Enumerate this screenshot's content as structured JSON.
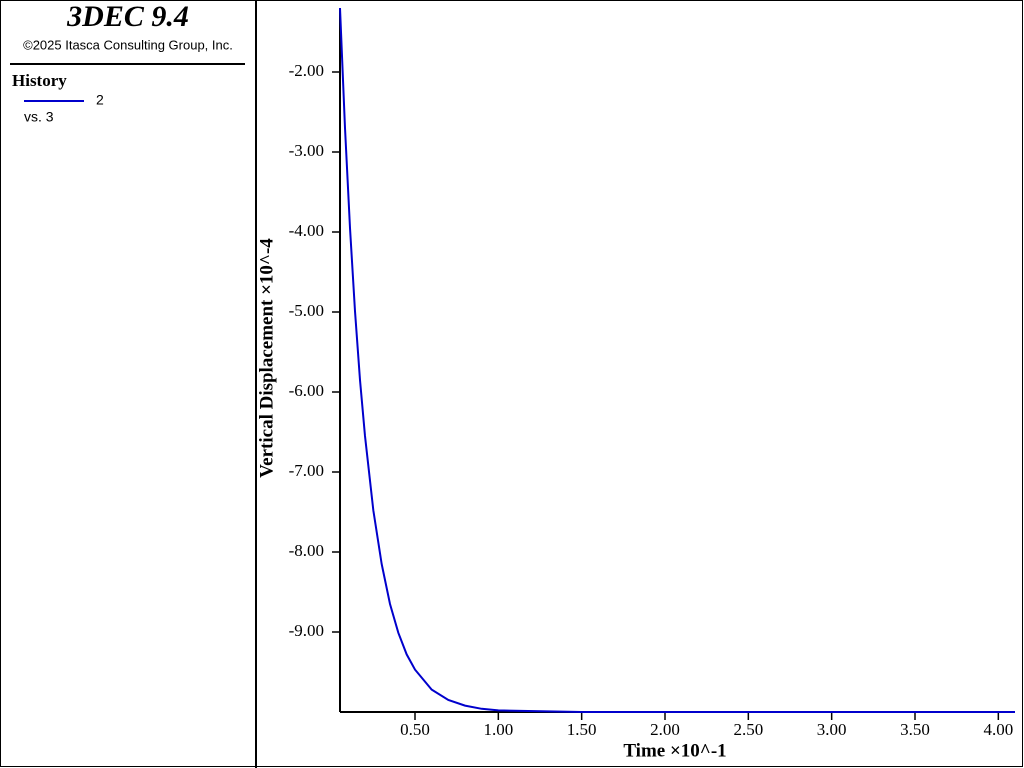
{
  "chart_data": {
    "type": "line",
    "app_title": "3DEC 9.4",
    "copyright": "©2025 Itasca Consulting Group, Inc.",
    "legend_title": "History",
    "legend_subtitle": "vs. 3",
    "x_label": "Time ×10^-1",
    "y_label": "Vertical Displacement ×10^-4",
    "x": [
      0.05,
      0.08,
      0.11,
      0.14,
      0.17,
      0.2,
      0.25,
      0.3,
      0.35,
      0.4,
      0.45,
      0.5,
      0.6,
      0.7,
      0.8,
      0.9,
      1.0,
      1.5,
      2.0,
      2.5,
      3.0,
      3.5,
      4.0,
      4.1
    ],
    "series": [
      {
        "name": "2",
        "color": "#0000cc",
        "values": [
          -1.2,
          -2.7,
          -3.95,
          -4.99,
          -5.85,
          -6.55,
          -7.48,
          -8.15,
          -8.65,
          -9.01,
          -9.28,
          -9.47,
          -9.72,
          -9.85,
          -9.92,
          -9.96,
          -9.98,
          -10.0,
          -10.0,
          -10.0,
          -10.0,
          -10.0,
          -10.0,
          -10.0
        ]
      }
    ],
    "xlim": [
      0.05,
      4.1
    ],
    "ylim": [
      -10.0,
      -1.2
    ],
    "xticks": [
      {
        "value": 0.5,
        "label": "0.50"
      },
      {
        "value": 1.0,
        "label": "1.00"
      },
      {
        "value": 1.5,
        "label": "1.50"
      },
      {
        "value": 2.0,
        "label": "2.00"
      },
      {
        "value": 2.5,
        "label": "2.50"
      },
      {
        "value": 3.0,
        "label": "3.00"
      },
      {
        "value": 3.5,
        "label": "3.50"
      },
      {
        "value": 4.0,
        "label": "4.00"
      }
    ],
    "yticks": [
      {
        "value": -2,
        "label": "-2.00"
      },
      {
        "value": -3,
        "label": "-3.00"
      },
      {
        "value": -4,
        "label": "-4.00"
      },
      {
        "value": -5,
        "label": "-5.00"
      },
      {
        "value": -6,
        "label": "-6.00"
      },
      {
        "value": -7,
        "label": "-7.00"
      },
      {
        "value": -8,
        "label": "-8.00"
      },
      {
        "value": -9,
        "label": "-9.00"
      }
    ]
  }
}
